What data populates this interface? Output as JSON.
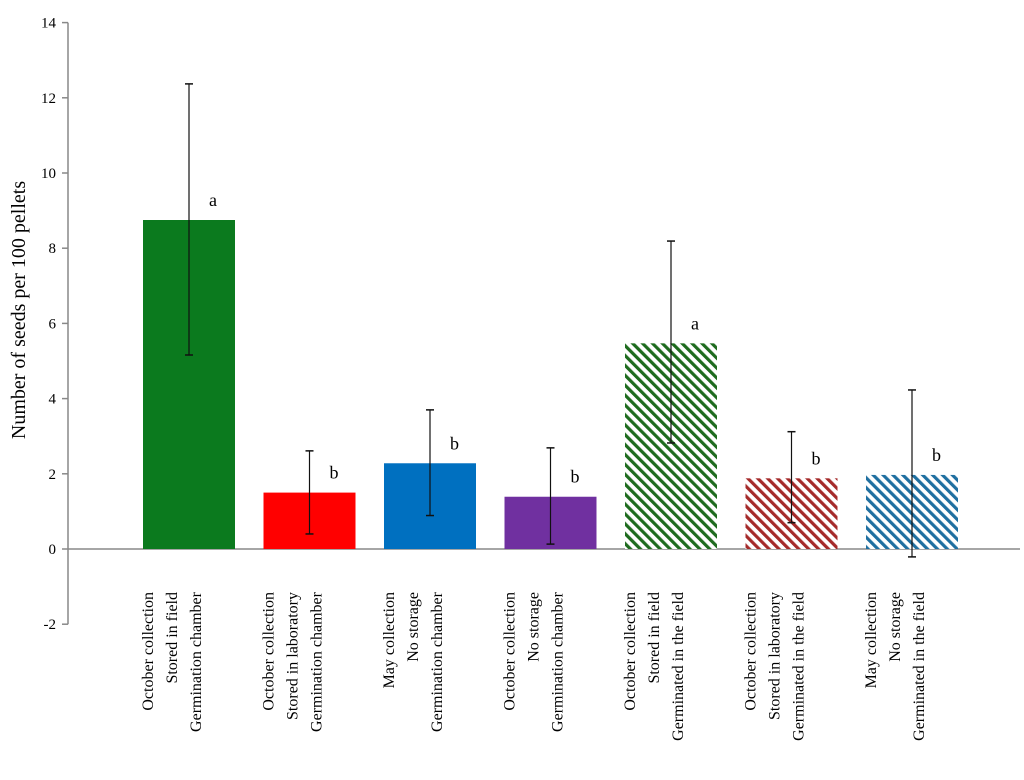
{
  "chart_data": {
    "type": "bar",
    "title": "",
    "xlabel": "",
    "ylabel": "Number of seeds per 100 pellets",
    "ylim": [
      -2,
      14
    ],
    "yticks": [
      -2,
      0,
      2,
      4,
      6,
      8,
      10,
      12,
      14
    ],
    "grid": false,
    "categories": [
      [
        "October collection",
        "Stored in field",
        "Germination  chamber"
      ],
      [
        "October collection",
        "Stored in laboratory",
        "Germination  chamber"
      ],
      [
        "May collection",
        "No storage",
        "Germination  chamber"
      ],
      [
        "October collection",
        "No storage",
        "Germination  chamber"
      ],
      [
        "October collection",
        "Stored in field",
        "Germinated  in the field"
      ],
      [
        "October collection",
        "Stored in laboratory",
        "Germinated  in the field"
      ],
      [
        "May collection",
        "No storage",
        "Germinated  in the field"
      ]
    ],
    "values": [
      8.75,
      1.5,
      2.28,
      1.39,
      5.47,
      1.88,
      1.97
    ],
    "error_upper": [
      12.37,
      2.61,
      3.7,
      2.69,
      8.19,
      3.12,
      4.23
    ],
    "error_lower": [
      5.16,
      0.4,
      0.89,
      0.13,
      2.82,
      0.7,
      -0.21
    ],
    "significance_letters": [
      "a",
      "b",
      "b",
      "b",
      "a",
      "b",
      "b"
    ],
    "fill_styles": [
      "solid",
      "solid",
      "solid",
      "solid",
      "hatched",
      "hatched",
      "hatched"
    ],
    "colors": [
      "#0b7a1e",
      "#ff0000",
      "#0070c0",
      "#7030a0",
      "#1e6b1e",
      "#a52a2a",
      "#1f6fa0"
    ]
  }
}
